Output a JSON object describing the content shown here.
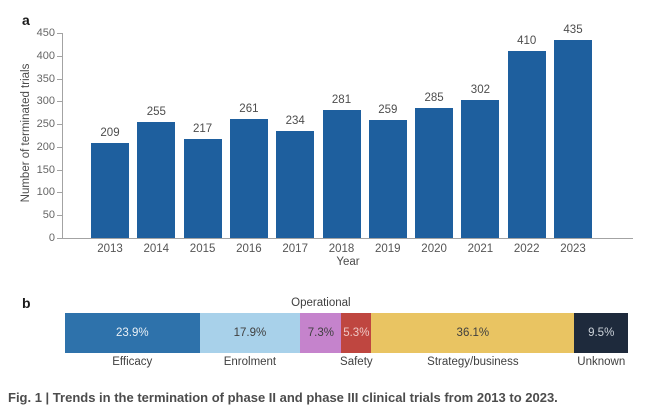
{
  "figure": {
    "panel_a_label": "a",
    "panel_b_label": "b",
    "caption": "Fig. 1 | Trends in the termination of phase II and phase III clinical trials from 2013 to 2023."
  },
  "chart_data": [
    {
      "type": "bar",
      "title": "",
      "xlabel": "Year",
      "ylabel": "Number of terminated trials",
      "categories": [
        "2013",
        "2014",
        "2015",
        "2016",
        "2017",
        "2018",
        "2019",
        "2020",
        "2021",
        "2022",
        "2023"
      ],
      "values": [
        209,
        255,
        217,
        261,
        234,
        281,
        259,
        285,
        302,
        410,
        435
      ],
      "ylim": [
        0,
        450
      ],
      "ytick_step": 50,
      "grid": "off",
      "legend": "none",
      "value_labels": "on",
      "bar_color": "#1e5f9e",
      "axis_color": "#a3a3a3",
      "tick_text_color": "#666666",
      "value_text_color": "#4d4d4d"
    },
    {
      "type": "bar",
      "orientation": "horizontal-stacked",
      "title": "",
      "unit": "%",
      "segments": [
        {
          "label": "Efficacy",
          "value": 23.9,
          "display": "23.9%",
          "color": "#2e72ab",
          "text_color": "#e9f0f6",
          "label_position": "below"
        },
        {
          "label": "Enrolment",
          "value": 17.9,
          "display": "17.9%",
          "color": "#a8d1ea",
          "text_color": "#3f3f3f",
          "label_position": "below"
        },
        {
          "label": "Operational",
          "value": 7.3,
          "display": "7.3%",
          "color": "#c583cc",
          "text_color": "#3f3f3f",
          "label_position": "above"
        },
        {
          "label": "Safety",
          "value": 5.3,
          "display": "5.3%",
          "color": "#bf4640",
          "text_color": "#eec7c4",
          "label_position": "below"
        },
        {
          "label": "Strategy/business",
          "value": 36.1,
          "display": "36.1%",
          "color": "#e9c462",
          "text_color": "#3f3f3f",
          "label_position": "below"
        },
        {
          "label": "Unknown",
          "value": 9.5,
          "display": "9.5%",
          "color": "#1e2a3c",
          "text_color": "#ccd2d9",
          "label_position": "below"
        }
      ]
    }
  ]
}
